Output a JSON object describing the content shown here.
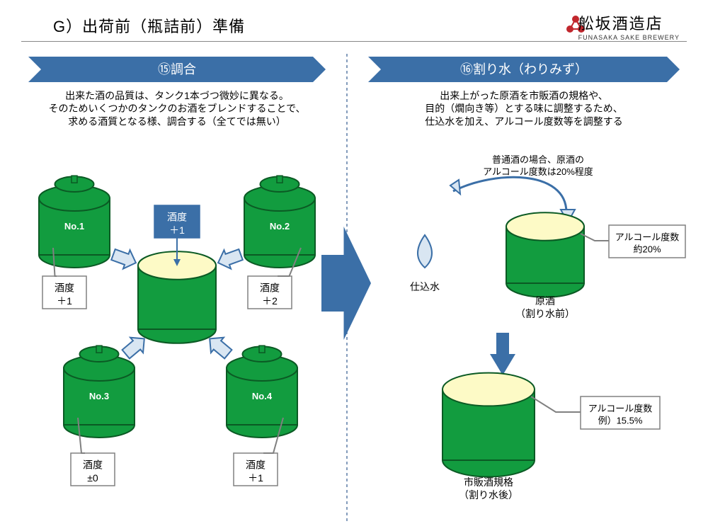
{
  "header": {
    "section_label": "G）出荷前（瓶詰前）準備",
    "brand_jp": "舩坂酒造店",
    "brand_en": "FUNASAKA SAKE BREWERY"
  },
  "colors": {
    "banner_fill": "#3b6fa7",
    "banner_text": "#ffffff",
    "tank_green": "#129c3f",
    "tank_stroke": "#0b5a24",
    "open_fill": "#fdfac6",
    "label_box_stroke": "#808080",
    "label_box_fill": "#ffffff",
    "arrow_fill": "#d9e6f2",
    "arrow_stroke": "#3b6fa7",
    "big_arrow_fill": "#3b6fa7",
    "down_arrow_fill": "#3b6fa7",
    "callout_stroke": "#3b6fa7",
    "divider_stroke": "#5b7ba5",
    "droplet_fill": "#d9e6f2",
    "droplet_stroke": "#3b6fa7",
    "text": "#000000",
    "logo_red": "#c1272d"
  },
  "left": {
    "banner_title": "⑮調合",
    "description": "出来た酒の品質は、タンク1本づつ微妙に異なる。\nそのためいくつかのタンクのお酒をブレンドすることで、\n求める酒質となる様、調合する（全てでは無い）",
    "center_box": "酒度\n＋1",
    "tanks": [
      {
        "id": "tank1",
        "name": "No.1",
        "label": "酒度\n＋1"
      },
      {
        "id": "tank2",
        "name": "No.2",
        "label": "酒度\n＋2"
      },
      {
        "id": "tank3",
        "name": "No.3",
        "label": "酒度\n±0"
      },
      {
        "id": "tank4",
        "name": "No.4",
        "label": "酒度\n＋1"
      }
    ]
  },
  "right": {
    "banner_title": "⑯割り水（わりみず）",
    "description": "出来上がった原酒を市販酒の規格や、\n目的（燗向き等）とする味に調整するため、\n仕込水を加え、アルコール度数等を調整する",
    "note_top": "普通酒の場合、原酒の\nアルコール度数は20%程度",
    "water_label": "仕込水",
    "tank_a_caption": "原酒\n（割り水前）",
    "tank_a_callout": "アルコール度数\n約20%",
    "tank_b_caption": "市販酒規格\n（割り水後）",
    "tank_b_callout": "アルコール度数\n例）15.5%"
  },
  "style": {
    "banner_fontsize": 18,
    "desc_fontsize": 14,
    "tank_name_fontsize": 13,
    "label_fontsize": 14,
    "caption_fontsize": 14,
    "callout_fontsize": 13,
    "note_fontsize": 13
  }
}
